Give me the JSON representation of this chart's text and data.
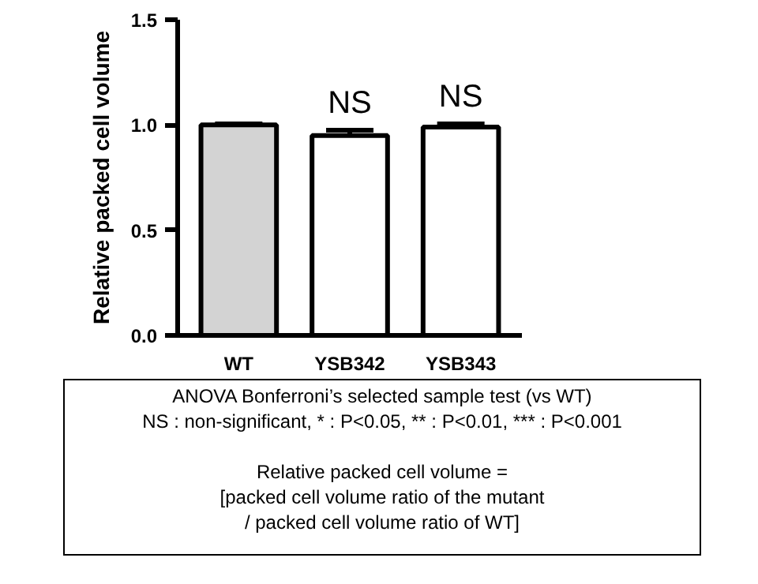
{
  "chart_data": {
    "type": "bar",
    "ylabel": "Relative packed cell volume",
    "categories": [
      "WT",
      "YSB342",
      "YSB343"
    ],
    "values": [
      1.0,
      0.95,
      0.99
    ],
    "colors": [
      "#d3d3d3",
      "#ffffff",
      "#ffffff"
    ],
    "errors": [
      0.005,
      0.025,
      0.015
    ],
    "ylim": [
      0,
      1.5
    ],
    "yticks": [
      {
        "value": 0,
        "label": "0.0"
      },
      {
        "value": 0.5,
        "label": "0.5"
      },
      {
        "value": 1.0,
        "label": "1.0"
      },
      {
        "value": 1.5,
        "label": "1.5"
      }
    ],
    "value_labels": [
      null,
      "NS",
      "NS"
    ],
    "grid": false,
    "annotations": [
      "ANOVA Bonferroni’s selected sample test (vs WT)",
      "NS : non-significant, * : P<0.05, ** : P<0.01, *** : P<0.001",
      "Relative packed cell volume =",
      "[packed cell volume ratio of the mutant",
      "/ packed cell volume ratio of WT]"
    ]
  }
}
